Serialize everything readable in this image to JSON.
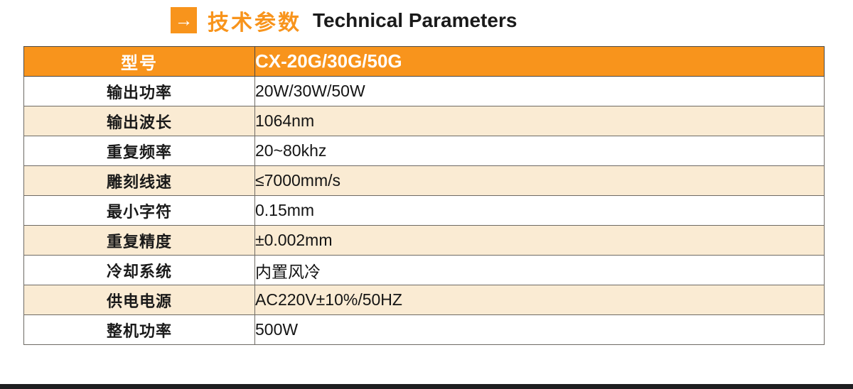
{
  "header": {
    "arrow_glyph": "→",
    "title_cn": "技术参数",
    "title_en": "Technical Parameters"
  },
  "table": {
    "header": {
      "model_label": "型号",
      "model_value": "CX-20G/30G/50G"
    },
    "rows": [
      {
        "label": "输出功率",
        "value": "20W/30W/50W"
      },
      {
        "label": "输出波长",
        "value": "1064nm"
      },
      {
        "label": "重复频率",
        "value": "20~80khz"
      },
      {
        "label": "雕刻线速",
        "value": "≤7000mm/s"
      },
      {
        "label": "最小字符",
        "value": "0.15mm"
      },
      {
        "label": "重复精度",
        "value": "±0.002mm"
      },
      {
        "label": "冷却系统",
        "value": "内置风冷"
      },
      {
        "label": "供电电源",
        "value": "AC220V±10%/50HZ"
      },
      {
        "label": "整机功率",
        "value": "500W"
      }
    ]
  },
  "colors": {
    "accent_orange": "#F8941C",
    "row_alt_cream": "#FAEBD3",
    "border_gray": "#6E6A64",
    "outer_border_dark": "#4C4A47",
    "footer_bar_dark": "#1E1E20",
    "text_dark": "#1A1A1A",
    "header_text_white": "#FFFFFF"
  }
}
